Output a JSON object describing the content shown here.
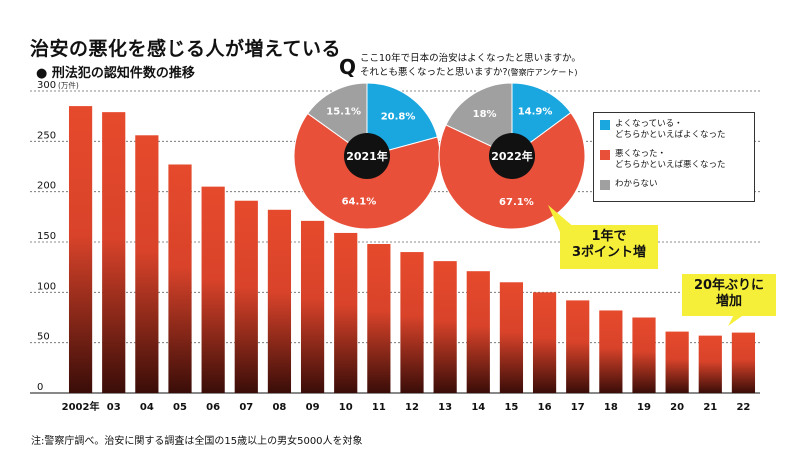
{
  "header": {
    "title": "治安の悪化を感じる人が増えている",
    "subtitle": "刑法犯の認知件数の推移"
  },
  "note": "注:警察庁調べ。治安に関する調査は全国の15歳以上の男女5000人を対象",
  "survey": {
    "q_mark": "Q",
    "question_line1": "ここ10年で日本の治安はよくなったと思いますか。",
    "question_line2": "それとも悪くなったと思いますか?",
    "source": "(警察庁アンケート)"
  },
  "callouts": {
    "percent_increase": "1年で\n3ポイント増",
    "year_increase": "20年ぶりに\n増加"
  },
  "colors": {
    "bar": "#e64a2c",
    "bar_dark": "#3a0d08",
    "pie_improved": "#1aa7e0",
    "pie_worse": "#e8503a",
    "pie_unknown": "#a0a0a0",
    "callout": "#f6ef3a"
  },
  "chart_data": [
    {
      "type": "bar",
      "title": "刑法犯の認知件数の推移",
      "unit_label": "(万件)",
      "categories": [
        "2002年",
        "03",
        "04",
        "05",
        "06",
        "07",
        "08",
        "09",
        "10",
        "11",
        "12",
        "13",
        "14",
        "15",
        "16",
        "17",
        "18",
        "19",
        "20",
        "21",
        "22"
      ],
      "values": [
        285,
        279,
        256,
        227,
        205,
        191,
        182,
        171,
        159,
        148,
        140,
        131,
        121,
        110,
        100,
        92,
        82,
        75,
        61,
        57,
        60
      ],
      "ylim": [
        0,
        300
      ],
      "yticks": [
        0,
        50,
        100,
        150,
        200,
        250,
        300
      ],
      "grid": true
    },
    {
      "type": "pie",
      "title": "2021年",
      "slices": [
        {
          "label": "よくなっている・どちらかといえばよくなった",
          "value": 20.8,
          "display": "20.8%"
        },
        {
          "label": "悪くなった・どちらかといえば悪くなった",
          "value": 64.1,
          "display": "64.1%"
        },
        {
          "label": "わからない",
          "value": 15.1,
          "display": "15.1%"
        }
      ]
    },
    {
      "type": "pie",
      "title": "2022年",
      "slices": [
        {
          "label": "よくなっている・どちらかといえばよくなった",
          "value": 14.9,
          "display": "14.9%"
        },
        {
          "label": "悪くなった・どちらかといえば悪くなった",
          "value": 67.1,
          "display": "67.1%"
        },
        {
          "label": "わからない",
          "value": 18,
          "display": "18%"
        }
      ]
    }
  ],
  "legend": [
    {
      "label": "よくなっている・\nどちらかといえばよくなった",
      "color": "#1aa7e0"
    },
    {
      "label": "悪くなった・\nどちらかといえば悪くなった",
      "color": "#e8503a"
    },
    {
      "label": "わからない",
      "color": "#a0a0a0"
    }
  ]
}
